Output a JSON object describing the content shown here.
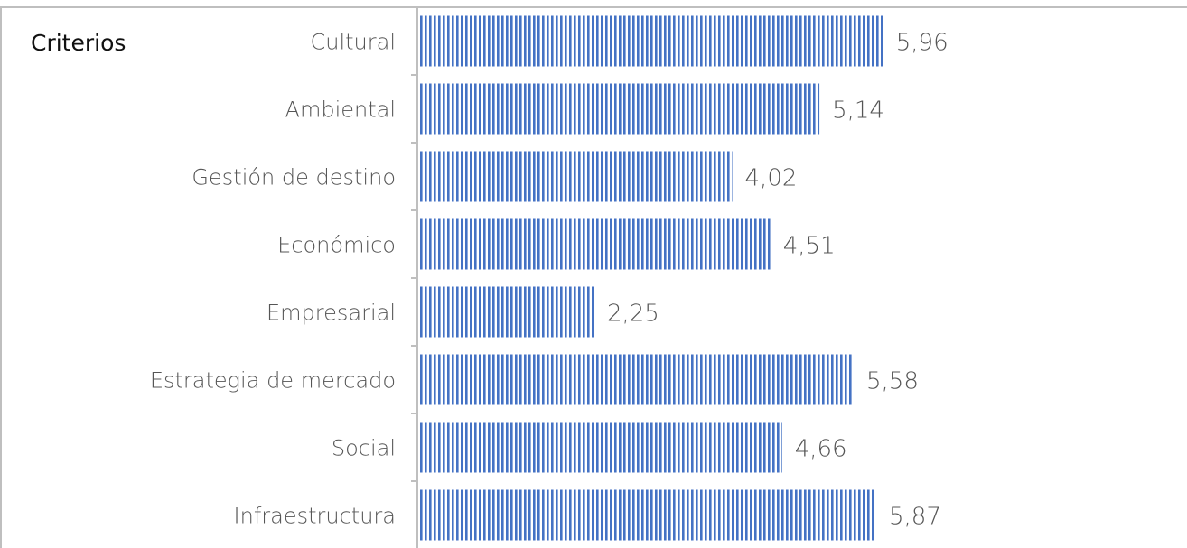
{
  "chart_data": {
    "type": "bar",
    "orientation": "horizontal",
    "title": "",
    "ylabel": "Criterios",
    "xlabel": "",
    "categories": [
      "Cultural",
      "Ambiental",
      "Gestión de destino",
      "Económico",
      "Empresarial",
      "Estrategia de mercado",
      "Social",
      "Infraestructura"
    ],
    "values": [
      5.96,
      5.14,
      4.02,
      4.51,
      2.25,
      5.58,
      4.66,
      5.87
    ],
    "value_labels": [
      "5,96",
      "5,14",
      "4,02",
      "4,51",
      "2,25",
      "5,58",
      "4,66",
      "5,87"
    ],
    "xlim": [
      0,
      10
    ],
    "grid": false,
    "legend": "none",
    "bar_color": "#4472c4",
    "bar_pattern": "vertical-stripes"
  }
}
